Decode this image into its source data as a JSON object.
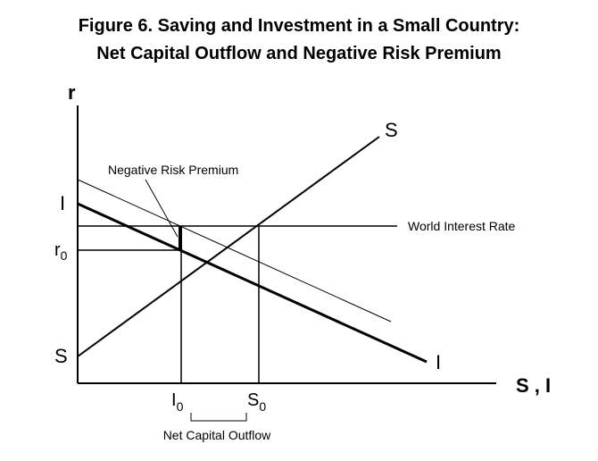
{
  "title": {
    "line1": "Figure 6.  Saving and Investment in a Small Country:",
    "line2": "Net Capital Outflow and Negative Risk Premium"
  },
  "axes": {
    "y_label": "r",
    "x_label": "S , I"
  },
  "curves": {
    "saving_top_label": "S",
    "saving_bottom_label": "S",
    "investment_top_label": "I",
    "investment_bottom_label": "I"
  },
  "annotations": {
    "negative_risk_premium": "Negative Risk Premium",
    "world_interest_rate": "World Interest Rate",
    "net_capital_outflow": "Net Capital Outflow"
  },
  "ticks": {
    "r0_main": "r",
    "r0_sub": "0",
    "I0_main": "I",
    "I0_sub": "0",
    "S0_main": "S",
    "S0_sub": "0"
  }
}
